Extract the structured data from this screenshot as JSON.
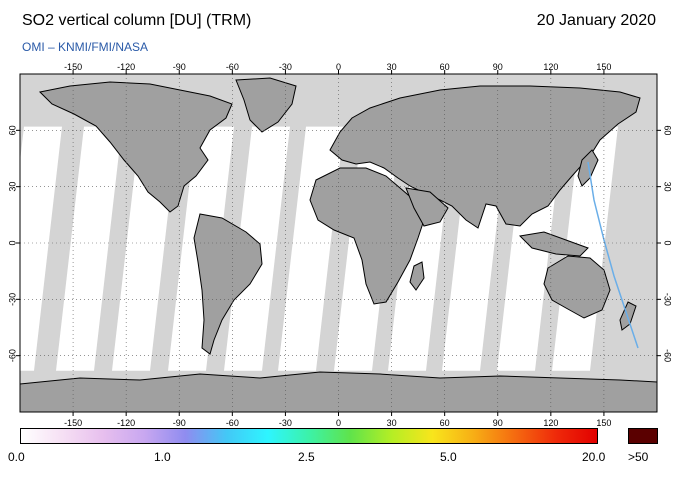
{
  "header": {
    "title": "SO2 vertical column [DU] (TRM)",
    "date": "20 January 2020",
    "credit": "OMI  –  KNMI/FMI/NASA"
  },
  "map": {
    "lon_ticks": [
      "-150",
      "-120",
      "-90",
      "-60",
      "-30",
      "0",
      "30",
      "60",
      "90",
      "120",
      "150"
    ],
    "lat_ticks": [
      "60",
      "30",
      "0",
      "-30",
      "-60"
    ],
    "colors": {
      "ocean_no_data": "#d4d4d4",
      "land": "#a0a0a0",
      "data_white": "#ffffff",
      "coastline": "#000000",
      "track": "#6aaee8"
    }
  },
  "colorbar": {
    "labels": [
      "0.0",
      "1.0",
      "2.5",
      "5.0",
      "20.0"
    ],
    "max_label": ">50",
    "colors": [
      "#ffffff",
      "#f6e0f4",
      "#e7bfee",
      "#c8a7f0",
      "#8f8cf0",
      "#43c8f6",
      "#2ef5ff",
      "#3cf2a8",
      "#5fe34b",
      "#b4ee25",
      "#f8e51c",
      "#f7ae15",
      "#f56b10",
      "#ef2a0a",
      "#e20000"
    ],
    "max_color": "#5a0000"
  }
}
